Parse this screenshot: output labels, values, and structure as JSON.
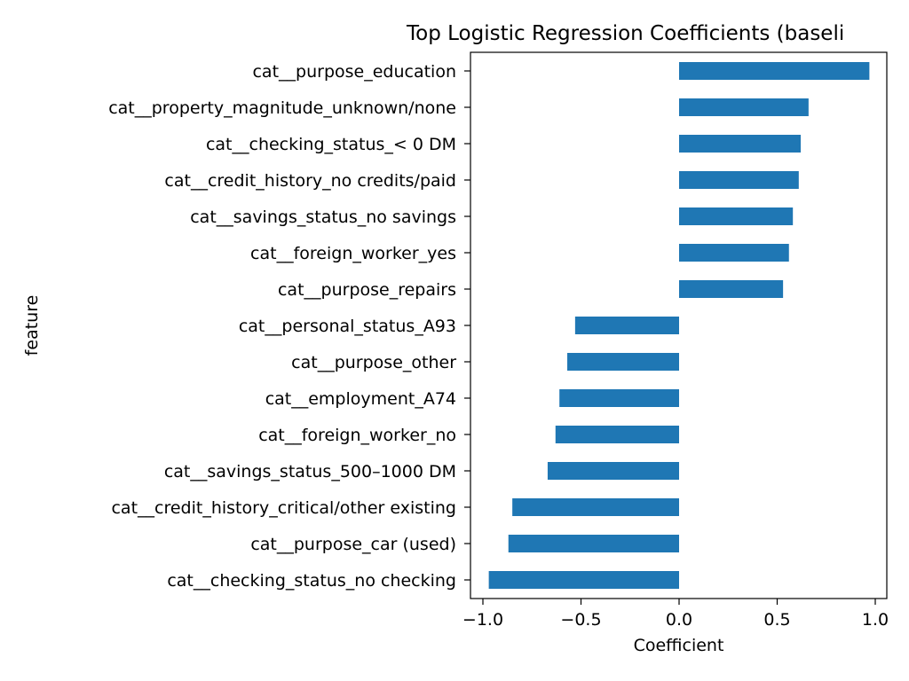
{
  "chart_data": {
    "type": "bar",
    "orientation": "horizontal",
    "title": "Top Logistic Regression Coefficients (baseli",
    "xlabel": "Coefficient",
    "ylabel": "feature",
    "xlim": [
      -1.0,
      1.0
    ],
    "xticks": [
      -1.0,
      -0.5,
      0.0,
      0.5,
      1.0
    ],
    "xtick_labels": [
      "−1.0",
      "−0.5",
      "0.0",
      "0.5",
      "1.0"
    ],
    "grid": false,
    "bar_color": "#1f77b4",
    "categories": [
      "cat__purpose_education",
      "cat__property_magnitude_unknown/none",
      "cat__checking_status_< 0 DM",
      "cat__credit_history_no credits/paid",
      "cat__savings_status_no savings",
      "cat__foreign_worker_yes",
      "cat__purpose_repairs",
      "cat__personal_status_A93",
      "cat__purpose_other",
      "cat__employment_A74",
      "cat__foreign_worker_no",
      "cat__savings_status_500–1000 DM",
      "cat__credit_history_critical/other existing",
      "cat__purpose_car (used)",
      "cat__checking_status_no checking"
    ],
    "values": [
      0.97,
      0.66,
      0.62,
      0.61,
      0.58,
      0.56,
      0.53,
      -0.53,
      -0.57,
      -0.61,
      -0.63,
      -0.67,
      -0.85,
      -0.87,
      -0.97
    ]
  }
}
